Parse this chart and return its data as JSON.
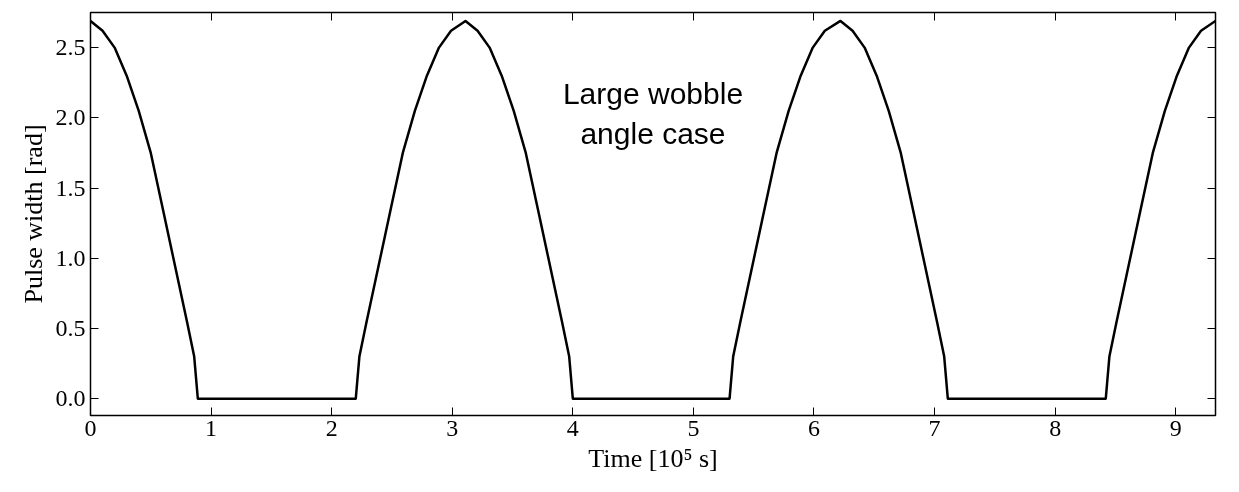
{
  "chart_data": {
    "type": "line",
    "xlabel": "Time [10⁵ s]",
    "ylabel": "Pulse width [rad]",
    "annotations": [
      "Large wobble\nangle case"
    ],
    "xlim": [
      0,
      9.33
    ],
    "ylim": [
      -0.12,
      2.75
    ],
    "xticks": [
      0,
      1,
      2,
      3,
      4,
      5,
      6,
      7,
      8,
      9
    ],
    "yticks": [
      {
        "value": 0,
        "label": "0.0"
      },
      0.5,
      {
        "value": 1,
        "label": "1.0"
      },
      1.5,
      {
        "value": 2,
        "label": "2.0"
      },
      2.5
    ],
    "grid": false,
    "marker": "none",
    "line_style": "solid",
    "series": [
      {
        "color": "#000000",
        "x": [
          0,
          0.1,
          0.2,
          0.3,
          0.4,
          0.5,
          0.6,
          0.7,
          0.8,
          0.86,
          0.88,
          0.89,
          2.2,
          2.21,
          2.23,
          2.29,
          2.39,
          2.49,
          2.59,
          2.69,
          2.79,
          2.89,
          2.99,
          3.11,
          3.21,
          3.31,
          3.41,
          3.51,
          3.61,
          3.71,
          3.81,
          3.91,
          3.97,
          3.99,
          4.0,
          5.3,
          5.31,
          5.33,
          5.39,
          5.49,
          5.59,
          5.69,
          5.79,
          5.89,
          5.99,
          6.09,
          6.22,
          6.32,
          6.42,
          6.52,
          6.62,
          6.72,
          6.82,
          6.92,
          7.02,
          7.08,
          7.1,
          7.11,
          8.42,
          8.43,
          8.45,
          8.51,
          8.61,
          8.71,
          8.81,
          8.91,
          9.01,
          9.11,
          9.21,
          9.33
        ],
        "values": [
          2.69,
          2.62,
          2.5,
          2.3,
          2.05,
          1.75,
          1.35,
          0.95,
          0.55,
          0.3,
          0.1,
          0,
          0,
          0.1,
          0.3,
          0.55,
          0.95,
          1.35,
          1.75,
          2.05,
          2.3,
          2.5,
          2.62,
          2.69,
          2.62,
          2.5,
          2.3,
          2.05,
          1.75,
          1.35,
          0.95,
          0.55,
          0.3,
          0.1,
          0,
          0,
          0.1,
          0.3,
          0.55,
          0.95,
          1.35,
          1.75,
          2.05,
          2.3,
          2.5,
          2.62,
          2.69,
          2.62,
          2.5,
          2.3,
          2.05,
          1.75,
          1.35,
          0.95,
          0.55,
          0.3,
          0.1,
          0,
          0,
          0.1,
          0.3,
          0.55,
          0.95,
          1.35,
          1.75,
          2.05,
          2.3,
          2.5,
          2.62,
          2.69
        ]
      }
    ]
  }
}
